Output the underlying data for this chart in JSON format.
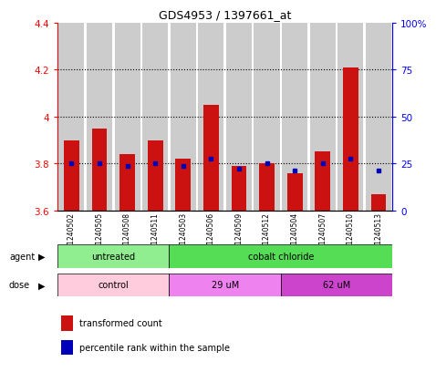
{
  "title": "GDS4953 / 1397661_at",
  "samples": [
    "GSM1240502",
    "GSM1240505",
    "GSM1240508",
    "GSM1240511",
    "GSM1240503",
    "GSM1240506",
    "GSM1240509",
    "GSM1240512",
    "GSM1240504",
    "GSM1240507",
    "GSM1240510",
    "GSM1240513"
  ],
  "red_values": [
    3.9,
    3.95,
    3.84,
    3.9,
    3.82,
    4.05,
    3.79,
    3.8,
    3.76,
    3.85,
    4.21,
    3.67
  ],
  "blue_values": [
    3.8,
    3.8,
    3.79,
    3.8,
    3.79,
    3.82,
    3.78,
    3.8,
    3.77,
    3.8,
    3.82,
    3.77
  ],
  "ymin": 3.6,
  "ymax": 4.4,
  "yticks": [
    3.6,
    3.8,
    4.0,
    4.2,
    4.4
  ],
  "ytick_labels_left": [
    "3.6",
    "3.8",
    "4",
    "4.2",
    "4.4"
  ],
  "dotted_lines": [
    3.8,
    4.0,
    4.2
  ],
  "agent_groups": [
    {
      "label": "untreated",
      "start": 0,
      "end": 4,
      "color": "#90EE90"
    },
    {
      "label": "cobalt chloride",
      "start": 4,
      "end": 12,
      "color": "#55DD55"
    }
  ],
  "dose_groups": [
    {
      "label": "control",
      "start": 0,
      "end": 4,
      "color": "#FFCCDD"
    },
    {
      "label": "29 uM",
      "start": 4,
      "end": 8,
      "color": "#EE82EE"
    },
    {
      "label": "62 uM",
      "start": 8,
      "end": 12,
      "color": "#CC44CC"
    }
  ],
  "legend_red_label": "transformed count",
  "legend_blue_label": "percentile rank within the sample",
  "bar_width": 0.55,
  "bar_color_red": "#CC1111",
  "bar_color_blue": "#0000BB",
  "bg_color": "#CCCCCC"
}
